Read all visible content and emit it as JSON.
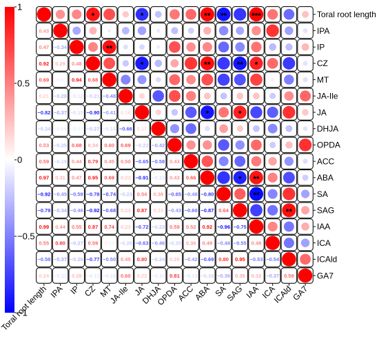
{
  "chart_data": {
    "type": "heatmap",
    "variables": [
      "Toral root length",
      "IPA",
      "IP",
      "CZ",
      "MT",
      "JA-Ile",
      "JA",
      "DHJA",
      "OPDA",
      "ACC",
      "ABA",
      "SA",
      "SAG",
      "IAA",
      "ICA",
      "ICAld",
      "GA7"
    ],
    "matrix": [
      [
        1,
        0.43,
        0.47,
        0.92,
        0.69,
        0.21,
        -0.82,
        -0.24,
        0.53,
        0.59,
        0.97,
        -0.92,
        -0.79,
        0.99,
        0.55,
        -0.58,
        0.24
      ],
      [
        0.43,
        1,
        -0.34,
        0.29,
        -0.07,
        -0.28,
        -0.37,
        -0.08,
        -0.25,
        -0.19,
        0.31,
        -0.45,
        -0.34,
        0.44,
        0.8,
        -0.37,
        -0.11
      ],
      [
        0.47,
        -0.34,
        1,
        0.48,
        0.94,
        -0.12,
        -0.15,
        -0.07,
        0.68,
        0.44,
        0.47,
        -0.59,
        -0.46,
        0.55,
        -0.27,
        -0.26,
        0.28
      ],
      [
        0.92,
        0.29,
        0.48,
        1,
        0.68,
        -0.21,
        -0.9,
        -0.27,
        0.34,
        0.79,
        0.95,
        -0.78,
        -0.92,
        0.87,
        0.59,
        -0.77,
        -0.11
      ],
      [
        0.69,
        -0.07,
        0.94,
        0.68,
        1,
        -0.48,
        -0.41,
        -0.14,
        0.6,
        0.45,
        0.69,
        -0.74,
        -0.68,
        0.74,
        0.07,
        -0.5,
        -0.12
      ],
      [
        0.21,
        -0.28,
        -0.12,
        -0.21,
        -0.48,
        1,
        0.16,
        -0.66,
        0.69,
        0.5,
        0.23,
        -0.23,
        0.23,
        0.23,
        -0.2,
        0.45,
        0.6
      ],
      [
        -0.82,
        -0.37,
        -0.15,
        -0.9,
        -0.41,
        0.16,
        1,
        0.17,
        -0.22,
        -0.65,
        -0.91,
        0.54,
        0.87,
        -0.72,
        -0.63,
        0.8,
        0.22
      ],
      [
        -0.24,
        -0.08,
        -0.07,
        -0.27,
        -0.14,
        -0.66,
        0.17,
        1,
        -0.42,
        -0.58,
        -0.13,
        0.38,
        0.21,
        -0.23,
        -0.46,
        -0.24,
        -0.11
      ],
      [
        0.53,
        -0.25,
        0.68,
        0.34,
        0.6,
        0.69,
        -0.22,
        -0.42,
        1,
        0.43,
        0.43,
        -0.65,
        -0.43,
        0.59,
        -0.2,
        0.26,
        0.81
      ],
      [
        0.59,
        -0.19,
        0.44,
        0.79,
        0.45,
        0.5,
        -0.65,
        -0.58,
        0.43,
        1,
        0.66,
        -0.48,
        -0.6,
        0.52,
        0.36,
        -0.42,
        -0.13
      ],
      [
        0.97,
        0.31,
        0.47,
        0.95,
        0.69,
        0.23,
        -0.91,
        -0.13,
        0.43,
        0.66,
        1,
        -0.8,
        -0.87,
        0.92,
        0.49,
        -0.69,
        -0.19
      ],
      [
        -0.92,
        -0.45,
        -0.59,
        -0.78,
        -0.74,
        -0.23,
        0.54,
        0.38,
        -0.65,
        -0.48,
        -0.8,
        1,
        0.64,
        -0.96,
        -0.48,
        0.8,
        -0.36
      ],
      [
        -0.79,
        -0.34,
        -0.46,
        -0.92,
        -0.68,
        0.23,
        0.87,
        0.21,
        -0.43,
        -0.6,
        -0.87,
        0.64,
        1,
        -0.75,
        -0.55,
        0.95,
        0.35
      ],
      [
        0.99,
        0.44,
        0.55,
        0.87,
        0.74,
        0.23,
        -0.72,
        -0.23,
        0.59,
        0.52,
        0.92,
        -0.96,
        -0.75,
        1,
        0.48,
        -0.53,
        0.32
      ],
      [
        0.55,
        0.8,
        -0.27,
        0.59,
        0.07,
        -0.2,
        -0.63,
        -0.46,
        -0.2,
        0.36,
        0.49,
        -0.48,
        -0.55,
        0.48,
        1,
        -0.54,
        -0.37
      ],
      [
        -0.58,
        -0.37,
        -0.26,
        -0.77,
        -0.5,
        0.45,
        0.8,
        -0.24,
        0.26,
        -0.42,
        -0.69,
        0.8,
        0.95,
        -0.53,
        -0.54,
        1,
        0.59
      ],
      [
        0.24,
        -0.11,
        0.28,
        -0.11,
        -0.12,
        0.6,
        0.22,
        -0.11,
        0.81,
        -0.13,
        -0.19,
        -0.36,
        0.35,
        0.32,
        -0.37,
        0.59,
        1
      ]
    ],
    "significance": [
      {
        "row": 0,
        "col": 3,
        "mark": "*"
      },
      {
        "row": 0,
        "col": 6,
        "mark": "*"
      },
      {
        "row": 0,
        "col": 10,
        "mark": "**"
      },
      {
        "row": 0,
        "col": 11,
        "mark": "**"
      },
      {
        "row": 0,
        "col": 13,
        "mark": "***"
      },
      {
        "row": 2,
        "col": 4,
        "mark": "**"
      },
      {
        "row": 3,
        "col": 6,
        "mark": "*"
      },
      {
        "row": 3,
        "col": 10,
        "mark": "**"
      },
      {
        "row": 3,
        "col": 12,
        "mark": "**"
      },
      {
        "row": 3,
        "col": 13,
        "mark": "*"
      },
      {
        "row": 6,
        "col": 10,
        "mark": "*"
      },
      {
        "row": 6,
        "col": 12,
        "mark": "*"
      },
      {
        "row": 10,
        "col": 12,
        "mark": "*"
      },
      {
        "row": 10,
        "col": 13,
        "mark": "**"
      },
      {
        "row": 11,
        "col": 13,
        "mark": "**"
      },
      {
        "row": 12,
        "col": 15,
        "mark": "**"
      }
    ],
    "lower_triangle": "numbers",
    "upper_triangle": "circles",
    "colorbar": {
      "range": [
        -1,
        1
      ],
      "ticks": [
        1,
        0.5,
        0,
        -0.5,
        -1
      ],
      "tick_labels": [
        "1",
        "0.5",
        "0",
        "−0.5",
        "−1"
      ]
    },
    "colors": {
      "positive": "#ff0000",
      "neutral": "#ffffff",
      "negative": "#0000ff"
    },
    "title": "",
    "xlabel": "",
    "ylabel": "",
    "legend": "left colorbar"
  }
}
